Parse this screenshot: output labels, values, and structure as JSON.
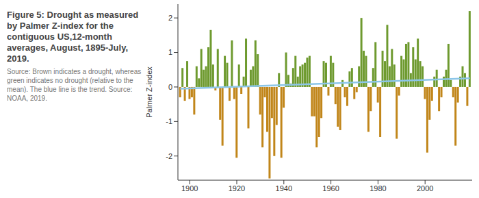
{
  "chart_data": {
    "type": "bar",
    "title": "Figure 5: Drought as measured by Palmer Z-index for the contiguous US,12-month averages, August, 1895-July, 2019.",
    "subtitle": "Source: Brown indicates a drought, whereas green indicates no drought (relative to the mean). The blue line is the trend. Source: NOAA, 2019.",
    "y_label": "Palmer Z-index",
    "x": [
      1896,
      1897,
      1898,
      1899,
      1900,
      1901,
      1902,
      1903,
      1904,
      1905,
      1906,
      1907,
      1908,
      1909,
      1910,
      1911,
      1912,
      1913,
      1914,
      1915,
      1916,
      1917,
      1918,
      1919,
      1920,
      1921,
      1922,
      1923,
      1924,
      1925,
      1926,
      1927,
      1928,
      1929,
      1930,
      1931,
      1932,
      1933,
      1934,
      1935,
      1936,
      1937,
      1938,
      1939,
      1940,
      1941,
      1942,
      1943,
      1944,
      1945,
      1946,
      1947,
      1948,
      1949,
      1950,
      1951,
      1952,
      1953,
      1954,
      1955,
      1956,
      1957,
      1958,
      1959,
      1960,
      1961,
      1962,
      1963,
      1964,
      1965,
      1966,
      1967,
      1968,
      1969,
      1970,
      1971,
      1972,
      1973,
      1974,
      1975,
      1976,
      1977,
      1978,
      1979,
      1980,
      1981,
      1982,
      1983,
      1984,
      1985,
      1986,
      1987,
      1988,
      1989,
      1990,
      1991,
      1992,
      1993,
      1994,
      1995,
      1996,
      1997,
      1998,
      1999,
      2000,
      2001,
      2002,
      2003,
      2004,
      2005,
      2006,
      2007,
      2008,
      2009,
      2010,
      2011,
      2012,
      2013,
      2014,
      2015,
      2016,
      2017,
      2018,
      2019
    ],
    "values": [
      -0.3,
      0.55,
      -0.4,
      0.75,
      -0.35,
      -0.3,
      -0.8,
      0.6,
      0.25,
      1.1,
      0.5,
      0.6,
      1.15,
      1.65,
      0.65,
      -0.1,
      1.1,
      -0.95,
      -1.7,
      0.9,
      0.7,
      -0.4,
      1.35,
      -0.35,
      -2.05,
      0.65,
      -0.2,
      0.3,
      1.4,
      -1.2,
      0.5,
      0.6,
      1.35,
      0.95,
      -0.8,
      -1.75,
      -0.3,
      -1.3,
      -2.65,
      -0.9,
      -2.0,
      -1.1,
      0.4,
      -2.05,
      -0.6,
      1.0,
      0.35,
      0.1,
      0.55,
      0.9,
      0.3,
      0.6,
      0.65,
      0.7,
      0.85,
      0.9,
      -0.85,
      -0.85,
      -1.75,
      -1.45,
      -0.9,
      0.75,
      0.7,
      -0.25,
      0.9,
      0.7,
      -0.5,
      -1.15,
      -1.25,
      0.2,
      -0.3,
      -0.55,
      0.45,
      0.55,
      -0.35,
      -0.15,
      0.6,
      2.0,
      1.05,
      0.9,
      -1.3,
      -0.7,
      0.55,
      1.3,
      -0.45,
      -1.45,
      1.05,
      0.75,
      1.8,
      0.6,
      1.1,
      0.65,
      -1.5,
      -0.25,
      0.9,
      0.8,
      1.25,
      1.3,
      0.4,
      1.15,
      0.8,
      1.4,
      0.75,
      0.6,
      -0.35,
      -1.9,
      -0.95,
      -0.4,
      0.3,
      0.5,
      -0.7,
      -0.3,
      0.3,
      0.5,
      1.25,
      0.2,
      -0.3,
      -1.7,
      -0.45,
      0.3,
      0.6,
      0.4,
      -0.55,
      2.2
    ],
    "colors": [
      "#c1861a",
      "#6e9a2f",
      "#c1861a",
      "#6e9a2f",
      "#c1861a",
      "#c1861a",
      "#c1861a",
      "#6e9a2f",
      "#6e9a2f",
      "#6e9a2f",
      "#6e9a2f",
      "#6e9a2f",
      "#6e9a2f",
      "#6e9a2f",
      "#6e9a2f",
      "#c1861a",
      "#6e9a2f",
      "#c1861a",
      "#c1861a",
      "#6e9a2f",
      "#6e9a2f",
      "#c1861a",
      "#6e9a2f",
      "#c1861a",
      "#c1861a",
      "#6e9a2f",
      "#c1861a",
      "#6e9a2f",
      "#6e9a2f",
      "#c1861a",
      "#6e9a2f",
      "#6e9a2f",
      "#6e9a2f",
      "#6e9a2f",
      "#c1861a",
      "#c1861a",
      "#c1861a",
      "#c1861a",
      "#c1861a",
      "#c1861a",
      "#c1861a",
      "#c1861a",
      "#6e9a2f",
      "#c1861a",
      "#c1861a",
      "#6e9a2f",
      "#6e9a2f",
      "#6e9a2f",
      "#6e9a2f",
      "#6e9a2f",
      "#6e9a2f",
      "#6e9a2f",
      "#6e9a2f",
      "#6e9a2f",
      "#6e9a2f",
      "#6e9a2f",
      "#c1861a",
      "#c1861a",
      "#c1861a",
      "#c1861a",
      "#c1861a",
      "#6e9a2f",
      "#6e9a2f",
      "#c1861a",
      "#6e9a2f",
      "#6e9a2f",
      "#c1861a",
      "#c1861a",
      "#c1861a",
      "#6e9a2f",
      "#c1861a",
      "#c1861a",
      "#6e9a2f",
      "#6e9a2f",
      "#c1861a",
      "#c1861a",
      "#6e9a2f",
      "#6e9a2f",
      "#6e9a2f",
      "#6e9a2f",
      "#c1861a",
      "#c1861a",
      "#6e9a2f",
      "#6e9a2f",
      "#c1861a",
      "#c1861a",
      "#6e9a2f",
      "#6e9a2f",
      "#6e9a2f",
      "#6e9a2f",
      "#6e9a2f",
      "#6e9a2f",
      "#c1861a",
      "#c1861a",
      "#6e9a2f",
      "#6e9a2f",
      "#6e9a2f",
      "#6e9a2f",
      "#6e9a2f",
      "#6e9a2f",
      "#6e9a2f",
      "#6e9a2f",
      "#6e9a2f",
      "#6e9a2f",
      "#c1861a",
      "#c1861a",
      "#c1861a",
      "#c1861a",
      "#6e9a2f",
      "#6e9a2f",
      "#c1861a",
      "#c1861a",
      "#6e9a2f",
      "#6e9a2f",
      "#6e9a2f",
      "#6e9a2f",
      "#c1861a",
      "#c1861a",
      "#c1861a",
      "#6e9a2f",
      "#6e9a2f",
      "#6e9a2f",
      "#c1861a",
      "#6e9a2f"
    ],
    "trend": {
      "x": [
        1896,
        2019
      ],
      "values": [
        -0.05,
        0.25
      ],
      "color": "#8cc6e8"
    },
    "xlim": [
      1895,
      2020
    ],
    "xticks": [
      1900,
      1920,
      1940,
      1960,
      1980,
      2000
    ],
    "ylim": [
      -2.7,
      2.4
    ],
    "yticks": [
      -2,
      -1,
      0,
      1,
      2
    ],
    "grid": false
  }
}
